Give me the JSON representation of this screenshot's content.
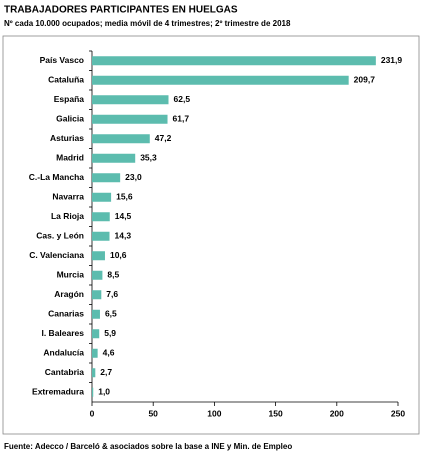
{
  "chart_data": {
    "type": "bar",
    "orientation": "horizontal",
    "title": "TRABAJADORES PARTICIPANTES EN HUELGAS",
    "subtitle": "Nº cada 10.000 ocupados; media móvil de 4 trimestres; 2º trimestre de 2018",
    "source": "Fuente: Adecco / Barceló & asociados sobre la base a INE y Min. de Empleo",
    "categories": [
      "País Vasco",
      "Cataluña",
      "España",
      "Galicia",
      "Asturias",
      "Madrid",
      "C.-La Mancha",
      "Navarra",
      "La Rioja",
      "Cas. y León",
      "C. Valenciana",
      "Murcia",
      "Aragón",
      "Canarias",
      "I. Baleares",
      "Andalucía",
      "Cantabria",
      "Extremadura"
    ],
    "values": [
      231.9,
      209.7,
      62.5,
      61.7,
      47.2,
      35.3,
      23.0,
      15.6,
      14.5,
      14.3,
      10.6,
      8.5,
      7.6,
      6.5,
      5.9,
      4.6,
      2.7,
      1.0
    ],
    "value_labels": [
      "231,9",
      "209,7",
      "62,5",
      "61,7",
      "47,2",
      "35,3",
      "23,0",
      "15,6",
      "14,5",
      "14,3",
      "10,6",
      "8,5",
      "7,6",
      "6,5",
      "5,9",
      "4,6",
      "2,7",
      "1,0"
    ],
    "color": "#5cbcae",
    "xlim": [
      0,
      250
    ],
    "xticks": [
      0,
      50,
      100,
      150,
      200,
      250
    ],
    "grid": false
  }
}
